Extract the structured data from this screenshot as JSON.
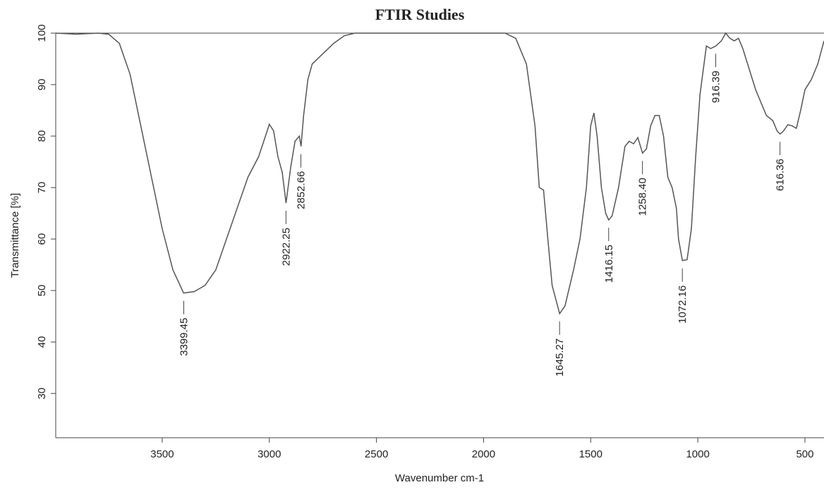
{
  "chart_data": {
    "type": "line",
    "title": "FTIR Studies",
    "x_label": "Wavenumber cm-1",
    "y_label": "Transmittance [%]",
    "color": "#555555",
    "xlim": [
      3997,
      411
    ],
    "ylim": [
      21.4,
      100
    ],
    "xticks": [
      3500,
      3000,
      2500,
      2000,
      1500,
      1000,
      500
    ],
    "yticks": [
      30,
      40,
      50,
      60,
      70,
      80,
      90,
      100
    ],
    "x": [
      3997,
      3900,
      3800,
      3750,
      3700,
      3650,
      3600,
      3550,
      3500,
      3450,
      3400,
      3350,
      3300,
      3250,
      3200,
      3150,
      3100,
      3050,
      3010,
      3000,
      2980,
      2960,
      2940,
      2922,
      2900,
      2880,
      2860,
      2852,
      2840,
      2820,
      2800,
      2750,
      2700,
      2650,
      2600,
      2500,
      2000,
      1900,
      1850,
      1800,
      1760,
      1740,
      1720,
      1700,
      1680,
      1645,
      1620,
      1580,
      1550,
      1520,
      1500,
      1485,
      1470,
      1450,
      1430,
      1416,
      1400,
      1370,
      1340,
      1320,
      1300,
      1280,
      1258,
      1240,
      1220,
      1200,
      1180,
      1160,
      1140,
      1120,
      1100,
      1090,
      1072,
      1050,
      1030,
      1010,
      990,
      960,
      940,
      916,
      890,
      870,
      850,
      830,
      810,
      790,
      760,
      730,
      700,
      680,
      650,
      630,
      616,
      600,
      580,
      560,
      540,
      520,
      500,
      470,
      440,
      411
    ],
    "values": [
      100,
      99.8,
      100,
      99.8,
      98,
      92,
      82,
      72,
      62,
      54,
      49.5,
      49.8,
      51,
      54,
      60,
      66,
      72,
      76,
      81,
      82.3,
      81,
      76,
      73,
      67,
      74,
      79,
      80,
      78,
      84,
      91,
      94,
      96,
      98,
      99.5,
      100,
      100,
      100,
      100,
      99,
      94,
      82,
      70,
      69.5,
      60,
      51,
      45.5,
      47,
      54,
      60,
      70,
      82,
      84.5,
      80,
      70,
      65,
      63.7,
      64.5,
      70,
      78,
      79,
      78.5,
      79.7,
      76.7,
      77.5,
      82,
      84,
      84,
      80,
      72,
      70,
      66,
      60,
      55.8,
      56,
      62,
      76,
      88,
      97.5,
      97,
      97.5,
      98.5,
      100,
      99,
      98.5,
      99,
      97,
      93,
      89,
      86,
      84,
      83,
      81,
      80.4,
      81,
      82.2,
      82,
      81.5,
      85,
      89,
      91,
      94,
      98.5
    ],
    "annotations": [
      {
        "x": 3399.45,
        "y": 49.5,
        "label": "3399.45"
      },
      {
        "x": 2922.25,
        "y": 67,
        "label": "2922.25"
      },
      {
        "x": 2852.66,
        "y": 78,
        "label": "2852.66"
      },
      {
        "x": 1645.27,
        "y": 45.5,
        "label": "1645.27"
      },
      {
        "x": 1416.15,
        "y": 63.7,
        "label": "1416.15"
      },
      {
        "x": 1258.4,
        "y": 76.7,
        "label": "1258.40"
      },
      {
        "x": 1072.16,
        "y": 55.8,
        "label": "1072.16"
      },
      {
        "x": 916.39,
        "y": 97.5,
        "label": "916.39"
      },
      {
        "x": 616.36,
        "y": 80.4,
        "label": "616.36"
      }
    ]
  }
}
